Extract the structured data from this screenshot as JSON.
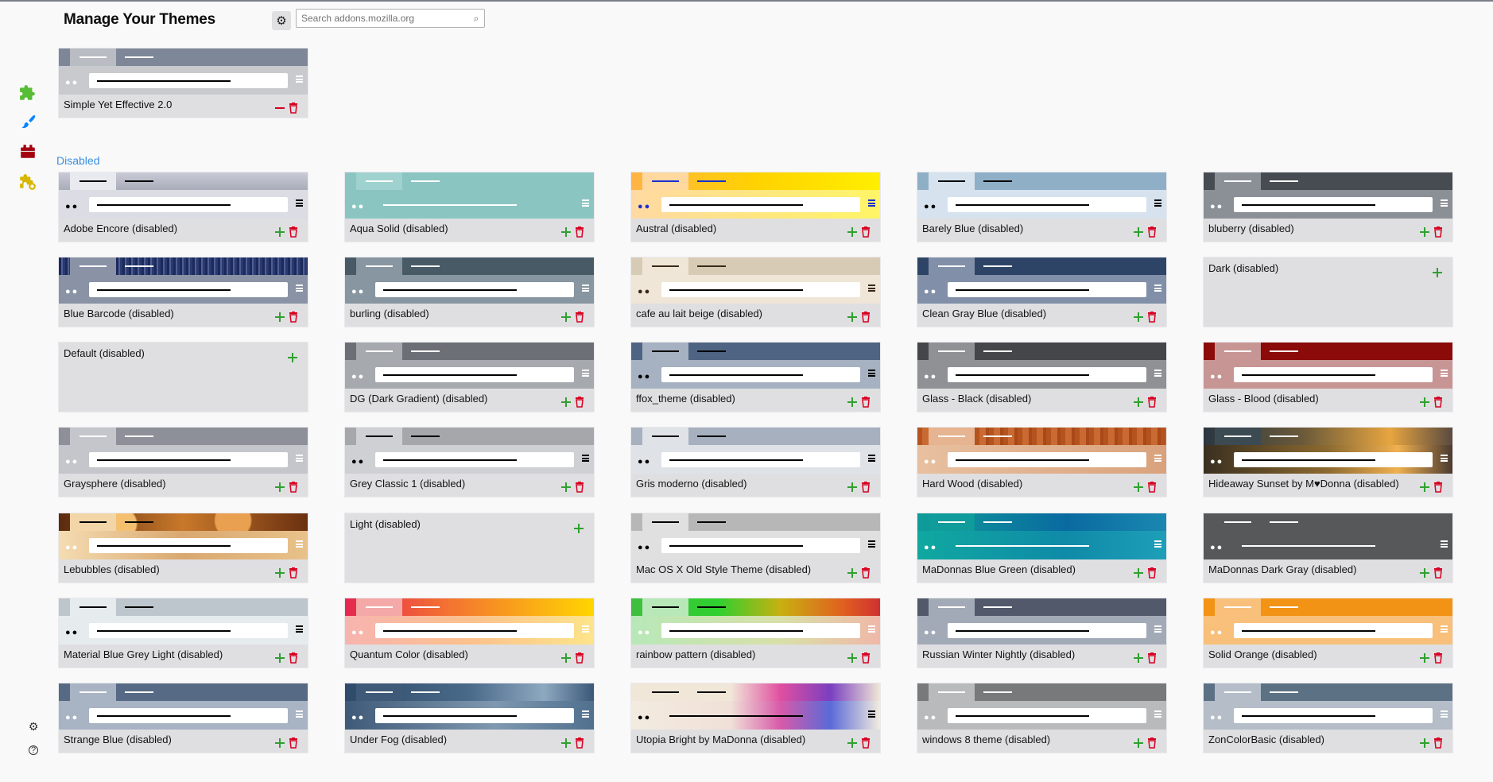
{
  "header": {
    "title": "Manage Your Themes",
    "search_placeholder": "Search addons.mozilla.org"
  },
  "section": {
    "disabled_label": "Disabled"
  },
  "sidebar": {
    "items": [
      {
        "icon": "puzzle-icon",
        "color": "#57bd35"
      },
      {
        "icon": "brush-icon",
        "color": "#0a84ff"
      },
      {
        "icon": "plugin-icon",
        "color": "#a4000f"
      },
      {
        "icon": "recommendations-icon",
        "color": "#d7b600"
      }
    ],
    "bottom": [
      {
        "icon": "gear-icon"
      },
      {
        "icon": "help-icon"
      }
    ]
  },
  "enabled_theme": {
    "name": "Simple Yet Effective 2.0",
    "tab_bg": "#7e8797",
    "sel_tab": "#b9bcc3",
    "tab_line": "#ffffff",
    "toolbar": "#c8cace",
    "dots": "#ffffff",
    "menu": "#ffffff"
  },
  "themes": [
    {
      "name": "Adobe Encore (disabled)",
      "tab_bg": "linear-gradient(#c9cbd6,#a9acba)",
      "sel_tab": "#e9eaef",
      "tab_line": "#000000",
      "toolbar": "#dcdde4",
      "dots": "#000000",
      "menu": "#000000"
    },
    {
      "name": "Aqua Solid (disabled)",
      "tab_bg": "#8ac5c2",
      "sel_tab": "#9fd2cf",
      "tab_line": "#ffffff",
      "toolbar": "#8ac5c2",
      "dots": "#ffffff",
      "menu": "#ffffff",
      "url": "#8ac5c2",
      "urlline": "#ffffff"
    },
    {
      "name": "Austral (disabled)",
      "tab_bg": "linear-gradient(90deg,#ffb347,#ffd200,#ffef00)",
      "sel_tab": "#ffd8a0",
      "tab_line": "#1d2fcf",
      "toolbar": "linear-gradient(90deg,#ffd9a3,#ffe680,#fff566)",
      "dots": "#1d2fcf",
      "menu": "#1d2fcf"
    },
    {
      "name": "Barely Blue (disabled)",
      "tab_bg": "#8fafc7",
      "sel_tab": "#d6e3ee",
      "tab_line": "#000000",
      "toolbar": "#d6e3ee",
      "dots": "#000000",
      "menu": "#000000"
    },
    {
      "name": "bluberry (disabled)",
      "tab_bg": "#474b52",
      "sel_tab": "#8b8f96",
      "tab_line": "#ffffff",
      "toolbar": "#8b8f96",
      "dots": "#ffffff",
      "menu": "#ffffff"
    },
    {
      "name": "Blue Barcode (disabled)",
      "tab_bg": "repeating-linear-gradient(90deg,#1c2a5a 0 3px,#4f5f95 3px 5px,#2a3a70 5px 8px)",
      "sel_tab": "#8a92a6",
      "tab_line": "#ffffff",
      "toolbar": "#8a92a6",
      "dots": "#ffffff",
      "menu": "#ffffff"
    },
    {
      "name": "burling (disabled)",
      "tab_bg": "#475a66",
      "sel_tab": "#8796a0",
      "tab_line": "#ffffff",
      "toolbar": "#8796a0",
      "dots": "#ffffff",
      "menu": "#ffffff"
    },
    {
      "name": "cafe au lait beige (disabled)",
      "tab_bg": "#d8cbb6",
      "sel_tab": "#efe6d7",
      "tab_line": "#3a2a1a",
      "toolbar": "#efe6d7",
      "dots": "#3a2a1a",
      "menu": "#3a2a1a"
    },
    {
      "name": "Clean Gray Blue (disabled)",
      "tab_bg": "#2e4466",
      "sel_tab": "#8190a8",
      "tab_line": "#ffffff",
      "toolbar": "#8190a8",
      "dots": "#ffffff",
      "menu": "#ffffff"
    },
    {
      "name": "Dark (disabled)",
      "no_preview": true
    },
    {
      "name": "Default (disabled)",
      "no_preview": true
    },
    {
      "name": "DG (Dark Gradient) (disabled)",
      "tab_bg": "#6c6f76",
      "sel_tab": "#a6a9ae",
      "tab_line": "#ffffff",
      "toolbar": "#a6a9ae",
      "dots": "#ffffff",
      "menu": "#ffffff"
    },
    {
      "name": "ffox_theme (disabled)",
      "tab_bg": "#4f6482",
      "sel_tab": "#a6b1c1",
      "tab_line": "#000000",
      "toolbar": "#a6b1c1",
      "dots": "#000000",
      "menu": "#000000"
    },
    {
      "name": "Glass - Black (disabled)",
      "tab_bg": "#45464a",
      "sel_tab": "#909195",
      "tab_line": "#ffffff",
      "toolbar": "#909195",
      "dots": "#ffffff",
      "menu": "#ffffff"
    },
    {
      "name": "Glass - Blood (disabled)",
      "tab_bg": "#8b0a0a",
      "sel_tab": "#c89595",
      "tab_line": "#ffffff",
      "toolbar": "#c89595",
      "dots": "#ffffff",
      "menu": "#ffffff"
    },
    {
      "name": "Graysphere (disabled)",
      "tab_bg": "#8d9099",
      "sel_tab": "#c4c6cb",
      "tab_line": "#ffffff",
      "toolbar": "#c4c6cb",
      "dots": "#ffffff",
      "menu": "#ffffff"
    },
    {
      "name": "Grey Classic 1 (disabled)",
      "tab_bg": "#a5a7ab",
      "sel_tab": "#cfd0d3",
      "tab_line": "#000000",
      "toolbar": "#cfd0d3",
      "dots": "#000000",
      "menu": "#000000"
    },
    {
      "name": "Gris moderno (disabled)",
      "tab_bg": "#a6b0be",
      "sel_tab": "#dfe3e8",
      "tab_line": "#000000",
      "toolbar": "#dfe3e8",
      "dots": "#000000",
      "menu": "#000000"
    },
    {
      "name": "Hard Wood (disabled)",
      "tab_bg": "repeating-linear-gradient(90deg,#b5531f 0 6px,#c86a32 6px 14px,#a94818 14px 18px)",
      "sel_tab": "#e6b490",
      "tab_line": "#ffffff",
      "toolbar": "linear-gradient(90deg,#e8c0a0,#d9a27c)",
      "dots": "#ffffff",
      "menu": "#ffffff"
    },
    {
      "name": "Hideaway Sunset by M♥Donna (disabled)",
      "tab_bg": "linear-gradient(90deg,#2a3640,#6b5a3a 40%,#e7a540 75%,#5a4a40)",
      "sel_tab": "#3c4a52",
      "tab_line": "#ffffff",
      "toolbar": "linear-gradient(90deg,#3a3020,#8c6a30 50%,#f0b050 78%,#4a3a30)",
      "dots": "#ffffff",
      "menu": "#ffffff"
    },
    {
      "name": "Lebubbles (disabled)",
      "tab_bg": "radial-gradient(circle at 25% 60%,#f4c070 0 8%,transparent 9%),radial-gradient(circle at 70% 40%,#e9a050 0 10%,transparent 11%),linear-gradient(90deg,#5a2a10,#c8782a,#6a3010)",
      "sel_tab": "#f2d6a8",
      "tab_line": "#000000",
      "toolbar": "linear-gradient(90deg,#f4dcb2,#d9a870,#e8c28a)",
      "dots": "#ffffff",
      "menu": "#ffffff"
    },
    {
      "name": "Light (disabled)",
      "no_preview": true
    },
    {
      "name": "Mac OS X Old Style Theme (disabled)",
      "tab_bg": "#b7b7b7",
      "sel_tab": "#e0e0e0",
      "tab_line": "#000000",
      "toolbar": "#e0e0e0",
      "dots": "#000000",
      "menu": "#000000"
    },
    {
      "name": "MaDonnas Blue Green (disabled)",
      "tab_bg": "linear-gradient(90deg,#0f9c9a,#0a6aa0 60%,#1a88b0)",
      "sel_tab": "#0f9c9a",
      "tab_line": "#ffffff",
      "toolbar": "linear-gradient(90deg,#10a8a0,#0f8aa8 60%,#1e9fb8)",
      "dots": "#ffffff",
      "menu": "#ffffff",
      "url": "transparent",
      "urlline": "#ffffff"
    },
    {
      "name": "MaDonnas Dark Gray (disabled)",
      "tab_bg": "#57585a",
      "sel_tab": "#57585a",
      "tab_line": "#ffffff",
      "toolbar": "#57585a",
      "dots": "#ffffff",
      "menu": "#ffffff",
      "url": "#57585a",
      "urlline": "#ffffff"
    },
    {
      "name": "Material Blue Grey Light (disabled)",
      "tab_bg": "#bcc6cc",
      "sel_tab": "#e6ebee",
      "tab_line": "#000000",
      "toolbar": "#e6ebee",
      "dots": "#000000",
      "menu": "#000000"
    },
    {
      "name": "Quantum Color (disabled)",
      "tab_bg": "linear-gradient(90deg,#e5274f,#f37032 40%,#f9a31a 70%,#ffd500)",
      "sel_tab": "#f5a8a8",
      "tab_line": "#ffffff",
      "toolbar": "linear-gradient(90deg,#f7b4b0,#fbc18c 50%,#fde48a)",
      "dots": "#ffffff",
      "menu": "#ffffff"
    },
    {
      "name": "rainbow pattern (disabled)",
      "tab_bg": "linear-gradient(90deg,#3fbf3f,#2fd02f 35%,#c8b010 60%,#e06020 85%,#d03030)",
      "sel_tab": "#b8e8b8",
      "tab_line": "#000000",
      "toolbar": "linear-gradient(90deg,#b8e8b8,#d8e0a8 60%,#f0b8a8)",
      "dots": "#ffffff",
      "menu": "#ffffff"
    },
    {
      "name": "Russian Winter Nightly (disabled)",
      "tab_bg": "#51596a",
      "sel_tab": "#a3aab7",
      "tab_line": "#ffffff",
      "toolbar": "#a3aab7",
      "dots": "#ffffff",
      "menu": "#ffffff"
    },
    {
      "name": "Solid Orange (disabled)",
      "tab_bg": "#f39316",
      "sel_tab": "#f8c07a",
      "tab_line": "#ffffff",
      "toolbar": "#f8c07a",
      "dots": "#ffffff",
      "menu": "#ffffff"
    },
    {
      "name": "Strange Blue (disabled)",
      "tab_bg": "#576a85",
      "sel_tab": "#a8b3c3",
      "tab_line": "#ffffff",
      "toolbar": "#a8b3c3",
      "dots": "#ffffff",
      "menu": "#ffffff"
    },
    {
      "name": "Under Fog (disabled)",
      "tab_bg": "linear-gradient(90deg,#2f4a68,#4a6a8a 50%,#8ea8c0 80%,#3a5878)",
      "sel_tab": "#3f5a78",
      "tab_line": "#ffffff",
      "toolbar": "linear-gradient(90deg,#3f5a78,#7f98b0 60%,#50708e)",
      "dots": "#ffffff",
      "menu": "#ffffff"
    },
    {
      "name": "Utopia Bright by MaDonna (disabled)",
      "tab_bg": "linear-gradient(90deg,#f1e7d8,#f1e7d8 40%,#e04fa0 60%,#7a3fc0 80%,#f1e7d8)",
      "sel_tab": "#f1e7d8",
      "tab_line": "#000000",
      "toolbar": "linear-gradient(90deg,#f3ebe0,#f0e0d8 40%,#d85aa8 60%,#5a6ad8 80%,#f3ebe0)",
      "dots": "#000000",
      "menu": "#000000",
      "url": "transparent",
      "urlline": "#000000"
    },
    {
      "name": "windows 8 theme (disabled)",
      "tab_bg": "#78797b",
      "sel_tab": "#b9babc",
      "tab_line": "#ffffff",
      "toolbar": "#b9babc",
      "dots": "#ffffff",
      "menu": "#ffffff"
    },
    {
      "name": "ZonColorBasic (disabled)",
      "tab_bg": "#5d7185",
      "sel_tab": "#b4bdc8",
      "tab_line": "#ffffff",
      "toolbar": "#b4bdc8",
      "dots": "#ffffff",
      "menu": "#ffffff"
    }
  ]
}
